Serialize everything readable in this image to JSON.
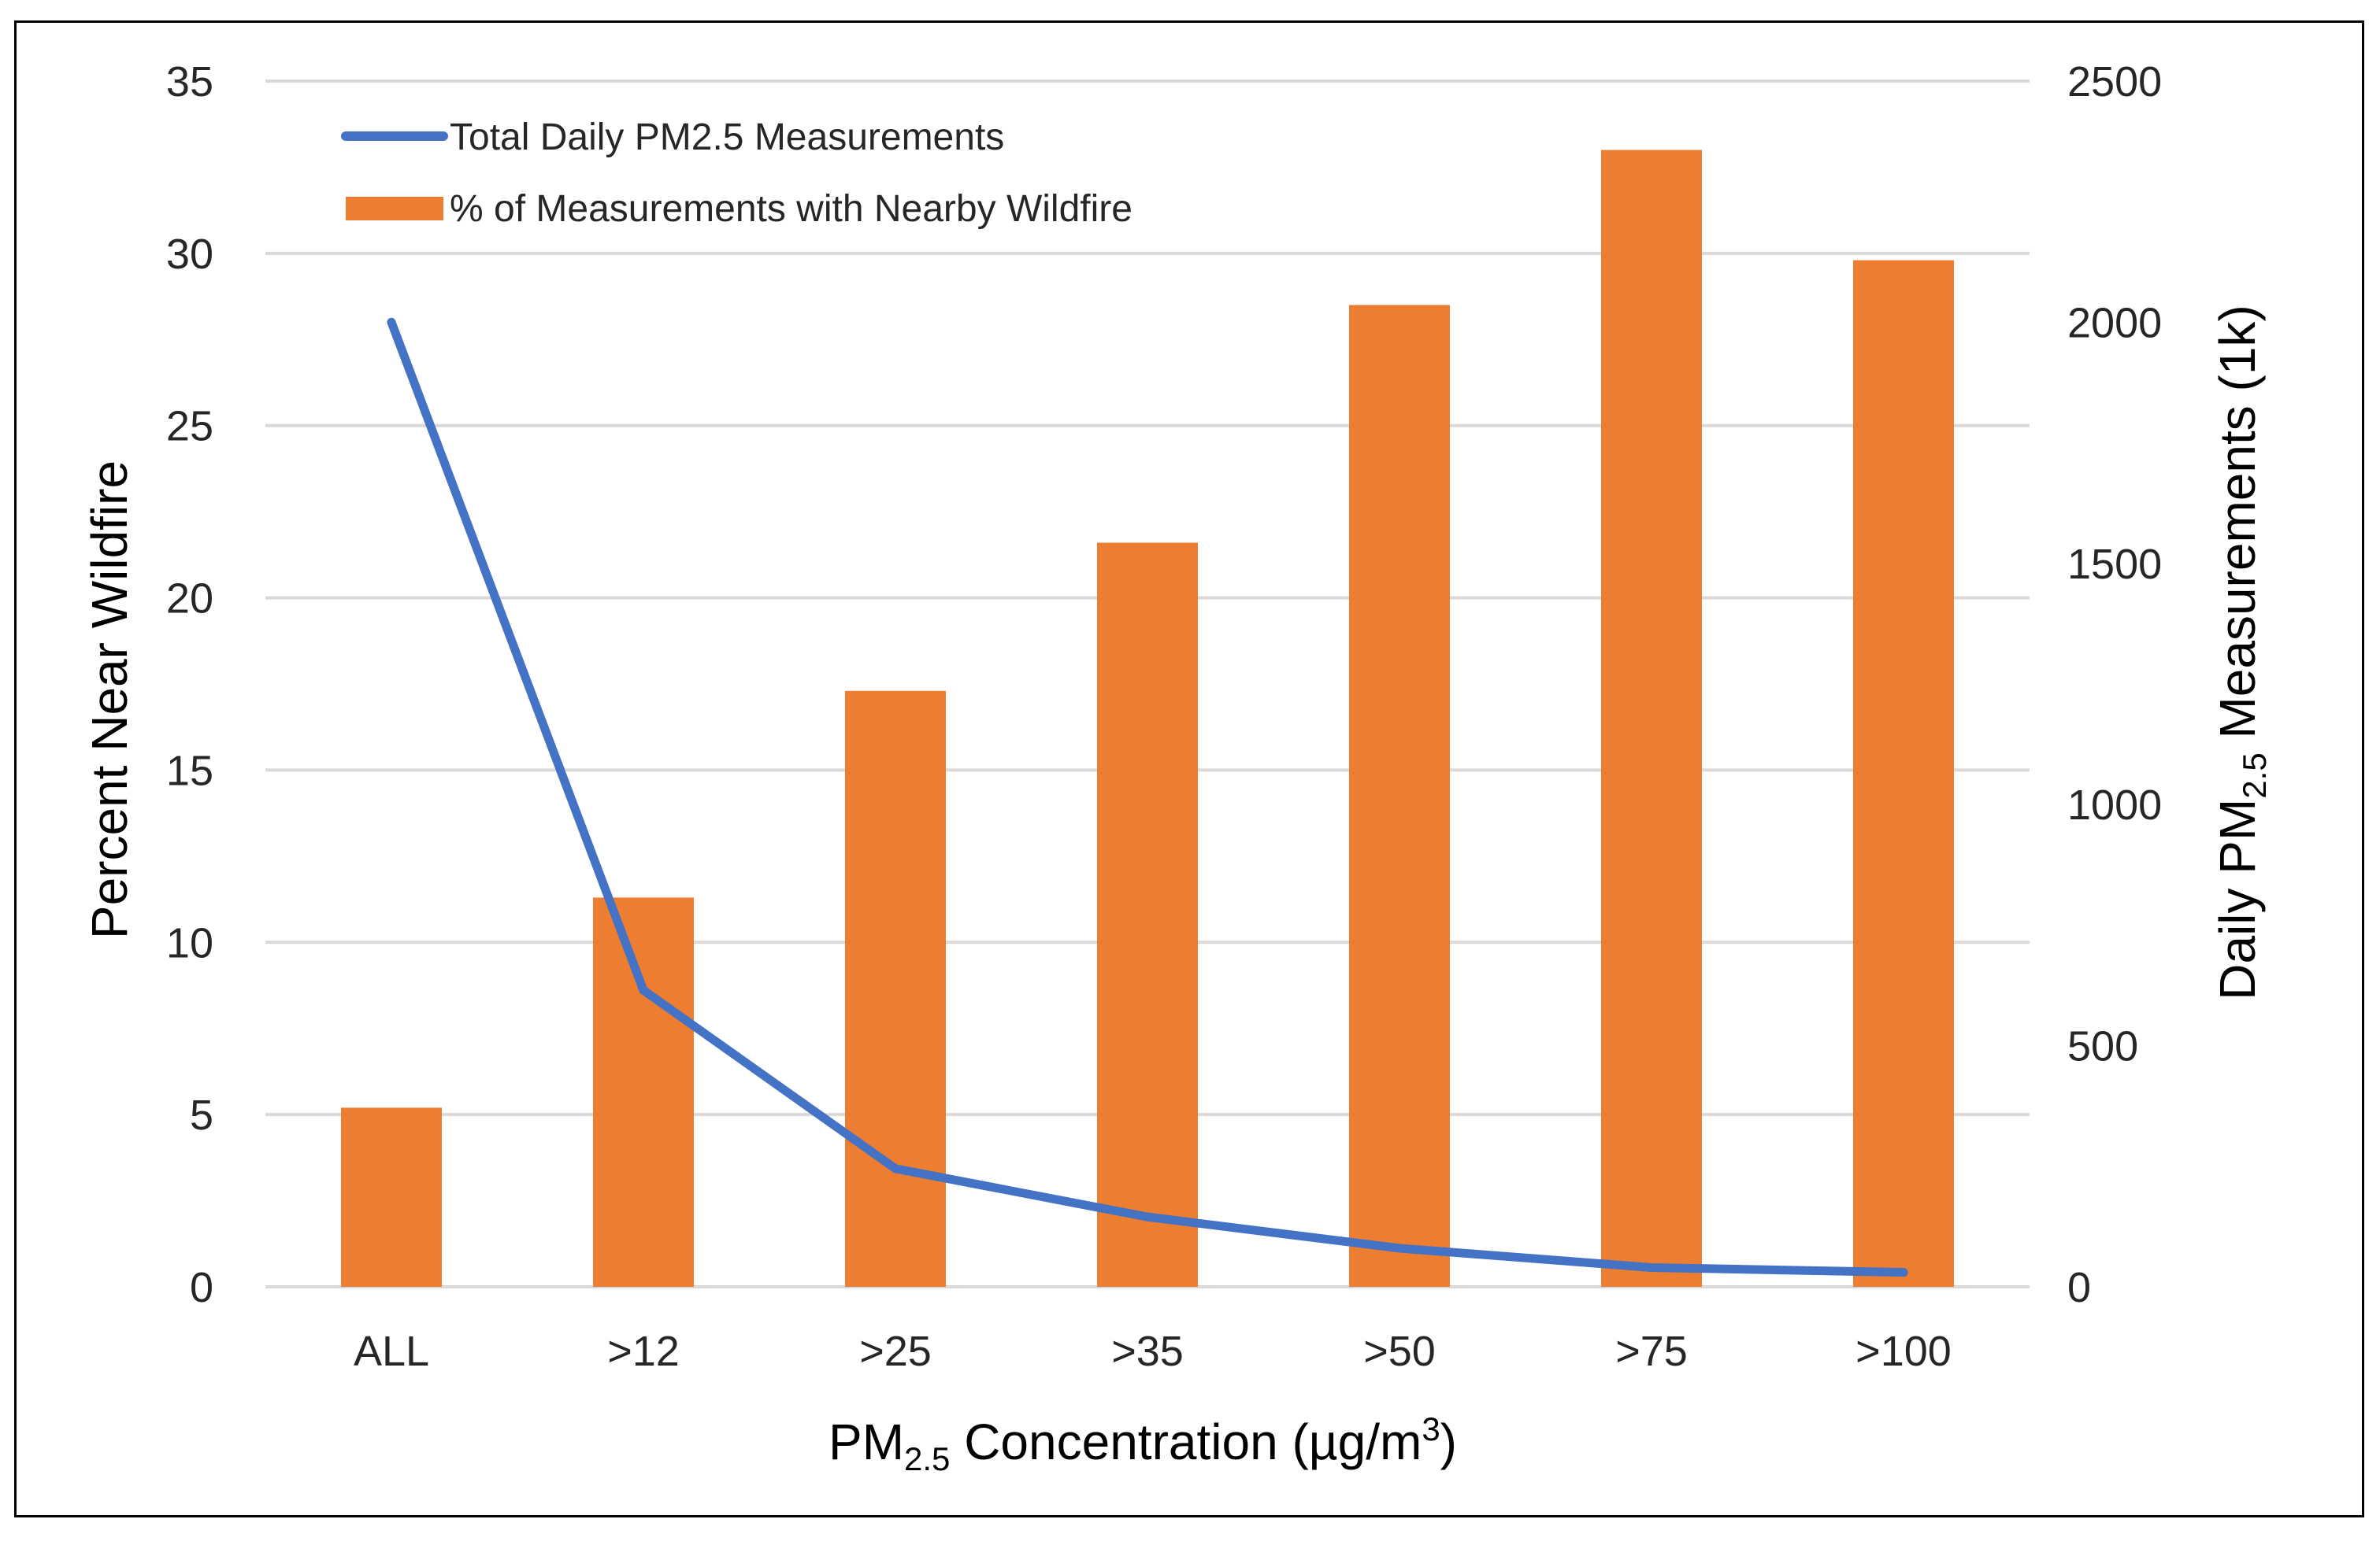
{
  "chart_data": {
    "type": "bar+line",
    "categories": [
      "ALL",
      ">12",
      ">25",
      ">35",
      ">50",
      ">75",
      ">100"
    ],
    "series": [
      {
        "name": "% of Measurements with Nearby Wildfire",
        "kind": "bar",
        "axis": "left",
        "color": "#ED7D31",
        "values": [
          5.2,
          11.3,
          17.3,
          21.6,
          28.5,
          33.0,
          29.8
        ]
      },
      {
        "name": "Total Daily PM2.5 Measurements",
        "kind": "line",
        "axis": "right",
        "color": "#4472C4",
        "values": [
          2000,
          615,
          245,
          145,
          80,
          40,
          30
        ]
      }
    ],
    "y_left": {
      "label": "Percent Near Wildfire",
      "ylim": [
        0,
        35
      ],
      "ticks": [
        "0",
        "5",
        "10",
        "15",
        "20",
        "25",
        "30",
        "35"
      ]
    },
    "y_right": {
      "label_prefix": "Daily PM",
      "label_sub": "2.5",
      "label_suffix": " Measurements (1k)",
      "ylim": [
        0,
        2500
      ],
      "ticks": [
        "0",
        "500",
        "1000",
        "1500",
        "2000",
        "2500"
      ]
    },
    "x_axis": {
      "label_prefix": "PM",
      "label_sub": "2.5",
      "label_middle": " Concentration (µg/m",
      "label_sup": "3",
      "label_suffix": ")"
    },
    "grid": true,
    "legend_position": "top-left"
  }
}
